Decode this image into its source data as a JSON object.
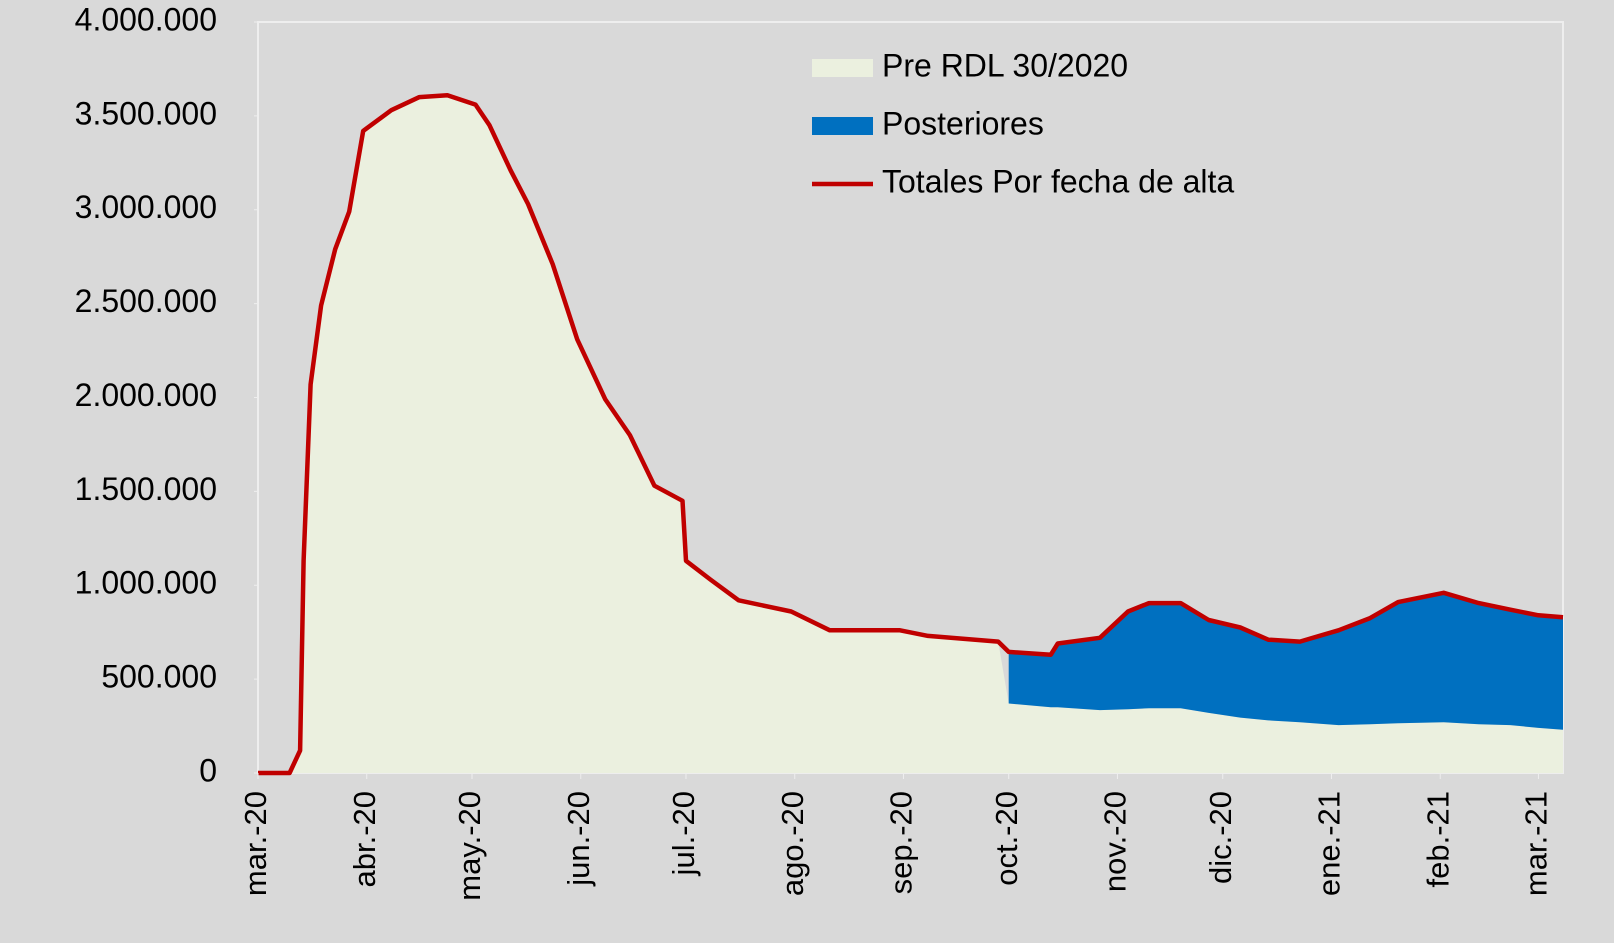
{
  "chart_data": {
    "type": "stacked-area-line",
    "x": [
      0,
      9,
      12,
      13,
      15,
      18,
      22,
      26,
      30,
      38,
      46,
      54,
      62,
      66,
      72,
      77,
      84,
      91,
      99,
      106,
      113,
      121,
      122,
      129,
      137,
      152,
      163,
      183,
      191,
      211,
      214,
      226,
      228,
      240,
      248,
      254,
      263,
      271,
      280,
      288,
      297,
      308,
      317,
      325,
      338,
      348,
      357,
      365,
      372
    ],
    "series": [
      {
        "name": "Pre RDL 30/2020",
        "type": "area",
        "color": "#ebf0df",
        "values": [
          0,
          0,
          120000,
          1130000,
          2070000,
          2490000,
          2790000,
          2990000,
          3420000,
          3530000,
          3600000,
          3610000,
          3560000,
          3450000,
          3210000,
          3030000,
          2710000,
          2310000,
          1990000,
          1800000,
          1530000,
          1450000,
          1130000,
          1030000,
          920000,
          860000,
          760000,
          760000,
          730000,
          700000,
          370000,
          350000,
          350000,
          335000,
          340000,
          345000,
          345000,
          320000,
          295000,
          280000,
          270000,
          255000,
          260000,
          265000,
          270000,
          260000,
          255000,
          240000,
          230000
        ]
      },
      {
        "name": "Posteriores",
        "type": "area",
        "color": "#0070c0",
        "values": [
          null,
          null,
          null,
          null,
          null,
          null,
          null,
          null,
          null,
          null,
          null,
          null,
          null,
          null,
          null,
          null,
          null,
          null,
          null,
          null,
          null,
          null,
          null,
          null,
          null,
          null,
          null,
          null,
          null,
          null,
          275000,
          280000,
          340000,
          385000,
          520000,
          560000,
          560000,
          495000,
          480000,
          430000,
          430000,
          505000,
          565000,
          645000,
          690000,
          645000,
          615000,
          600000,
          600000
        ]
      },
      {
        "name": "Totales Por fecha de alta",
        "type": "line",
        "color": "#c00000",
        "values": [
          0,
          0,
          120000,
          1130000,
          2070000,
          2490000,
          2790000,
          2990000,
          3420000,
          3530000,
          3600000,
          3610000,
          3560000,
          3450000,
          3210000,
          3030000,
          2710000,
          2310000,
          1990000,
          1800000,
          1530000,
          1450000,
          1130000,
          1030000,
          920000,
          860000,
          760000,
          760000,
          730000,
          700000,
          645000,
          630000,
          690000,
          720000,
          860000,
          905000,
          905000,
          815000,
          775000,
          710000,
          700000,
          760000,
          825000,
          910000,
          960000,
          905000,
          870000,
          840000,
          830000
        ]
      }
    ],
    "xlim": [
      0,
      372
    ],
    "xticks": [
      {
        "value": 0,
        "label": "mar.-20"
      },
      {
        "value": 31,
        "label": "abr.-20"
      },
      {
        "value": 61,
        "label": "may.-20"
      },
      {
        "value": 92,
        "label": "jun.-20"
      },
      {
        "value": 122,
        "label": "jul.-20"
      },
      {
        "value": 153,
        "label": "ago.-20"
      },
      {
        "value": 184,
        "label": "sep.-20"
      },
      {
        "value": 214,
        "label": "oct.-20"
      },
      {
        "value": 245,
        "label": "nov.-20"
      },
      {
        "value": 275,
        "label": "dic.-20"
      },
      {
        "value": 306,
        "label": "ene.-21"
      },
      {
        "value": 337,
        "label": "feb.-21"
      },
      {
        "value": 365,
        "label": "mar.-21"
      }
    ],
    "ylim": [
      0,
      4000000
    ],
    "yticks": [
      0,
      {
        "value": 500000,
        "label": "500.000"
      },
      {
        "value": 1000000,
        "label": "1.000.000"
      },
      {
        "value": 1500000,
        "label": "1.500.000"
      },
      {
        "value": 2000000,
        "label": "2.000.000"
      },
      {
        "value": 2500000,
        "label": "2.500.000"
      },
      {
        "value": 3000000,
        "label": "3.000.000"
      },
      {
        "value": 3500000,
        "label": "3.500.000"
      },
      {
        "value": 4000000,
        "label": "4.000.000"
      }
    ],
    "legend": "top-right"
  }
}
